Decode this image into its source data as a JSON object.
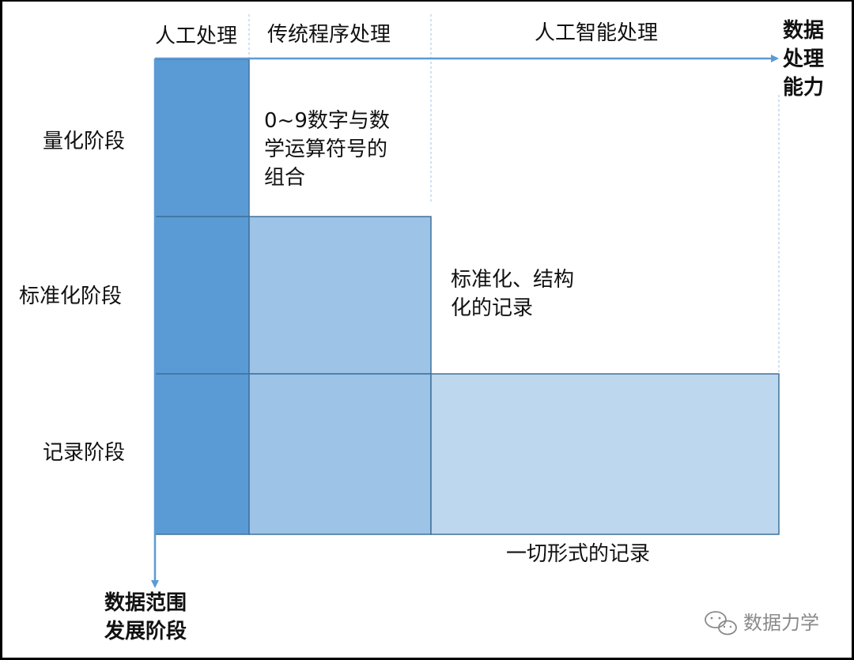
{
  "columns": {
    "manual": "人工处理",
    "program": "传统程序处理",
    "ai": "人工智能处理"
  },
  "rows": {
    "quant": "量化阶段",
    "standard": "标准化阶段",
    "record": "记录阶段"
  },
  "axes": {
    "x_label": [
      "数据",
      "处理",
      "能力"
    ],
    "y_label": [
      "数据范围",
      "发展阶段"
    ]
  },
  "cells": {
    "quant_text": [
      "0~9数字与数",
      "学运算符号的",
      "组合"
    ],
    "standard_text": [
      "标准化、结构",
      "化的记录"
    ],
    "record_text": "一切形式的记录"
  },
  "watermark": {
    "text": "数据力学",
    "icon": "wechat-icon"
  },
  "colors": {
    "manual": "#5b9bd5",
    "program": "#9dc3e6",
    "ai": "#bdd7ee",
    "border": "#41719c",
    "arrow": "#5b9bd5"
  }
}
